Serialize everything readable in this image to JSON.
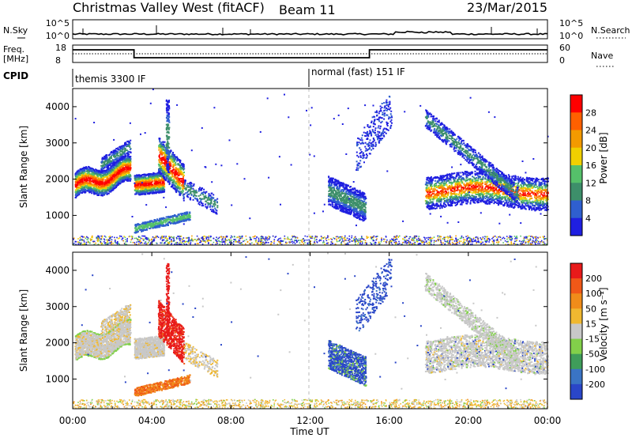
{
  "header": {
    "title": "Christmas Valley West (fitACF)",
    "beam": "Beam 11",
    "date": "23/Mar/2015"
  },
  "noise_panel": {
    "left_label": "N.Sky",
    "left_ticks": [
      "10^5",
      "10^0"
    ],
    "right_label": "N.Search",
    "right_ticks": [
      "10^5",
      "10^0"
    ]
  },
  "freq_panel": {
    "left_label_1": "Freq.",
    "left_label_2": "[MHz]",
    "left_ticks": [
      "18",
      "8"
    ],
    "right_label": "Nave",
    "right_ticks": [
      "60",
      "0"
    ]
  },
  "cpid_panel": {
    "label": "CPID",
    "modes": [
      "themis 3300 IF",
      "normal (fast) 151 IF"
    ]
  },
  "chart_data": [
    {
      "type": "heatmap",
      "name": "power",
      "ylabel": "Slant Range [km]",
      "yticks": [
        1000,
        2000,
        3000,
        4000
      ],
      "ylim": [
        180,
        4500
      ],
      "colorbar_label": "Power [dB]",
      "colorbar_ticks": [
        "28",
        "24",
        "20",
        "16",
        "12",
        "8",
        "4"
      ],
      "colors": [
        "#1f1fe0",
        "#2f5fcf",
        "#3d8f6a",
        "#55c06a",
        "#f0d000",
        "#f39a00",
        "#ff6000",
        "#ff0000"
      ]
    },
    {
      "type": "heatmap",
      "name": "velocity",
      "ylabel": "Slant Range [km]",
      "yticks": [
        1000,
        2000,
        3000,
        4000
      ],
      "ylim": [
        180,
        4500
      ],
      "colorbar_label": "Velocity [m s⁻¹]",
      "colorbar_ticks": [
        "200",
        "100",
        "50",
        "15",
        "-15",
        "-50",
        "-100",
        "-200"
      ],
      "colors": [
        "#2a46c8",
        "#3a74c4",
        "#3f9d5a",
        "#82d04a",
        "#c8c8c8",
        "#f0b830",
        "#f08c1a",
        "#f05818",
        "#e81a1a"
      ]
    }
  ],
  "time_axis": {
    "label": "Time UT",
    "ticks": [
      "00:00",
      "04:00",
      "08:00",
      "12:00",
      "16:00",
      "20:00",
      "00:00"
    ]
  }
}
